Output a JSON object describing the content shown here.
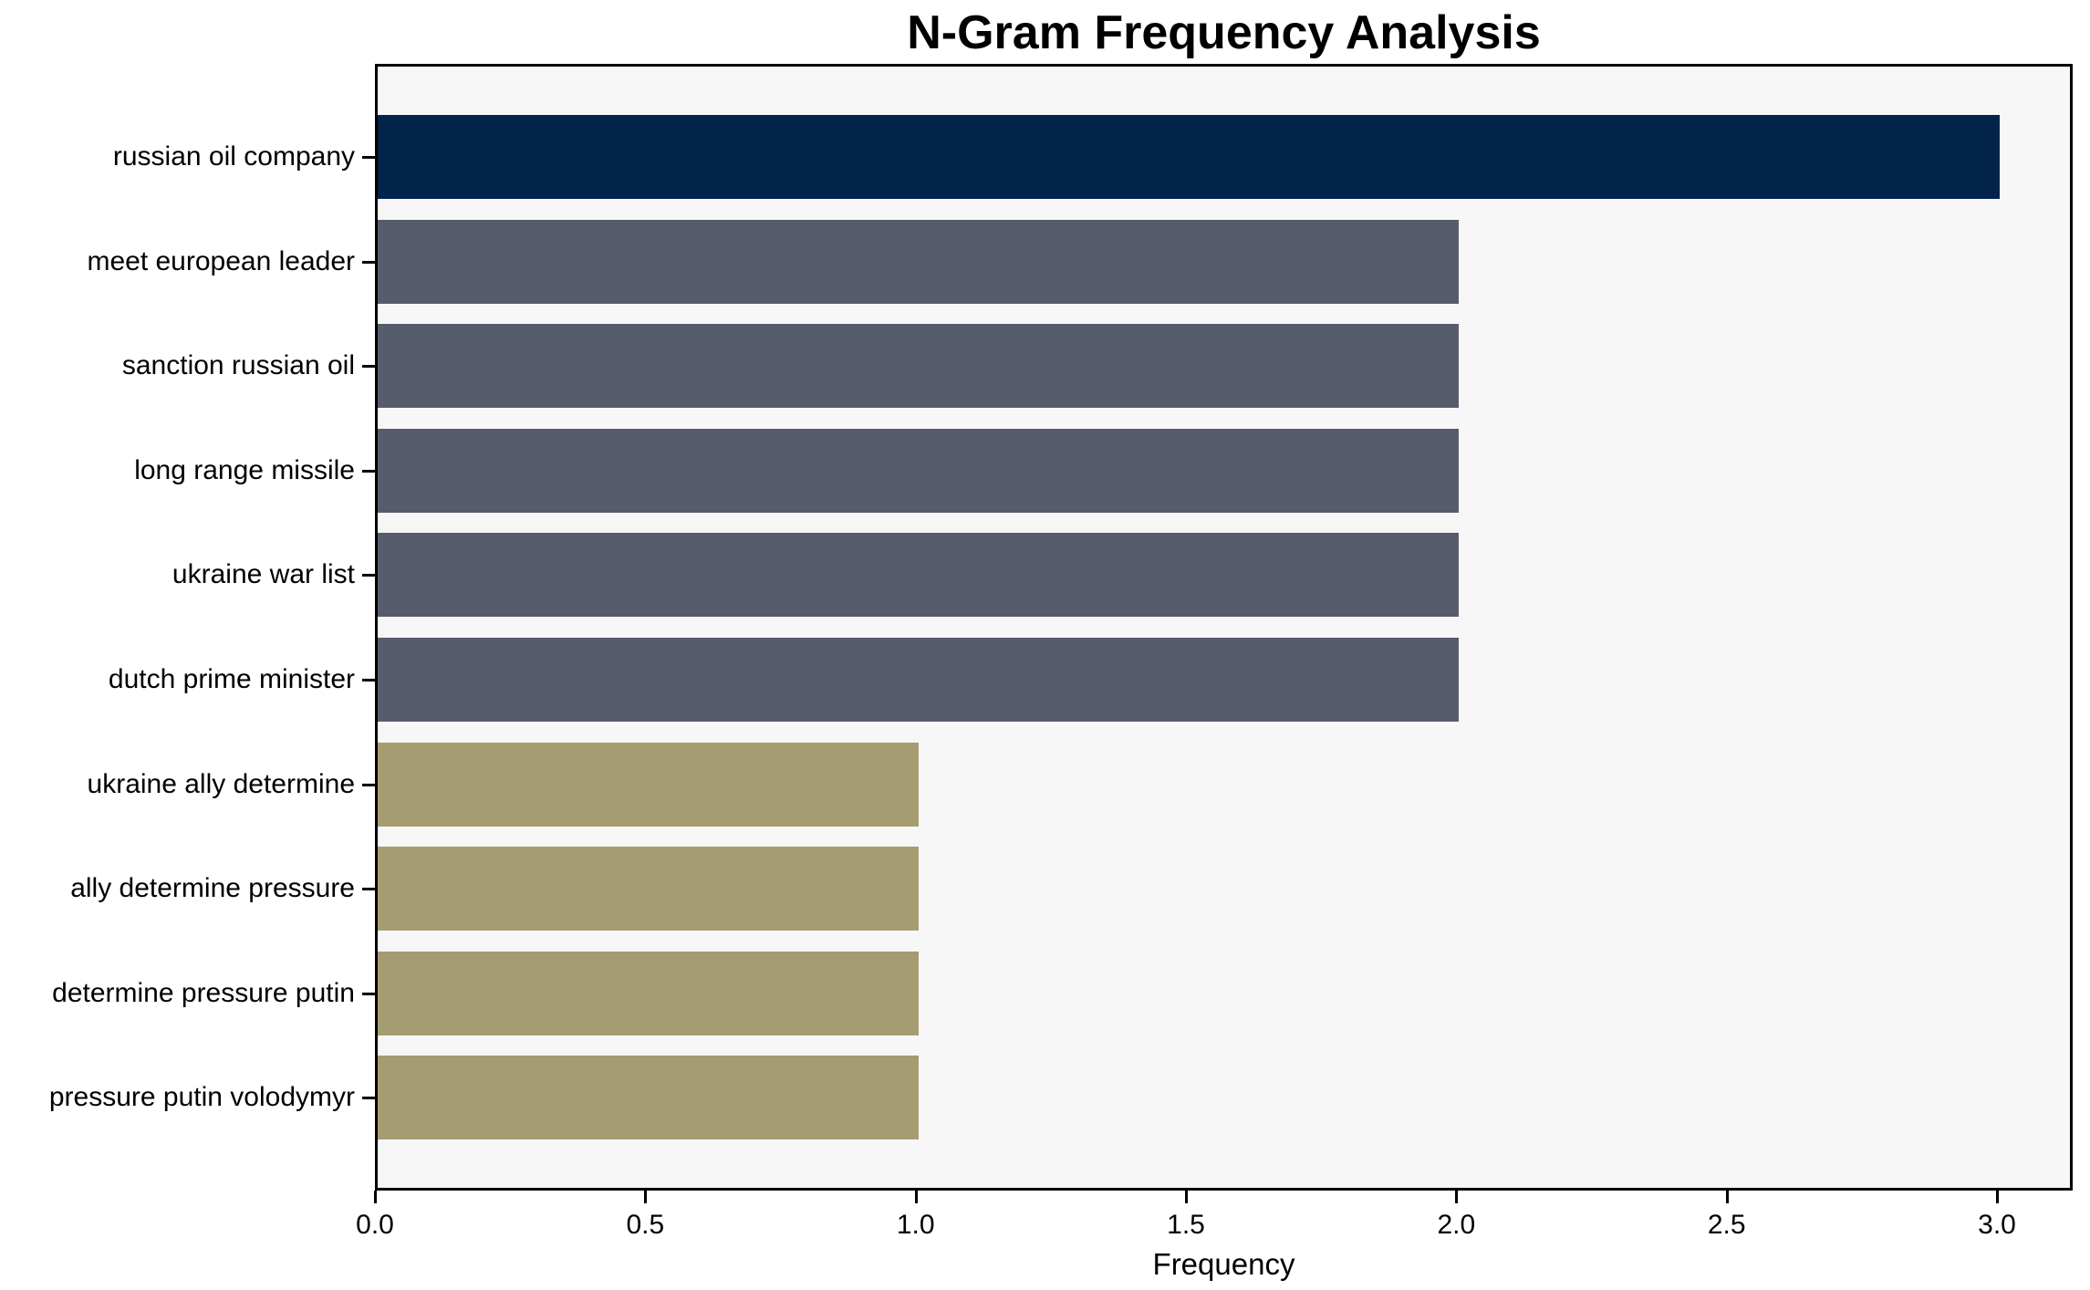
{
  "chart_data": {
    "type": "bar",
    "orientation": "horizontal",
    "title": "N-Gram Frequency Analysis",
    "xlabel": "Frequency",
    "ylabel": "",
    "categories": [
      "russian oil company",
      "meet european leader",
      "sanction russian oil",
      "long range missile",
      "ukraine war list",
      "dutch prime minister",
      "ukraine ally determine",
      "ally determine pressure",
      "determine pressure putin",
      "pressure putin volodymyr"
    ],
    "values": [
      3,
      2,
      2,
      2,
      2,
      2,
      1,
      1,
      1,
      1
    ],
    "bar_colors": [
      "#02234A",
      "#565C6B",
      "#565C6B",
      "#565C6B",
      "#565C6B",
      "#565C6B",
      "#A69C72",
      "#A69C72",
      "#A69C72",
      "#A69C72"
    ],
    "xticks": [
      0,
      0.5,
      1,
      1.5,
      2,
      2.5,
      3
    ],
    "xtick_labels": [
      "0.0",
      "0.5",
      "1.0",
      "1.5",
      "2.0",
      "2.5",
      "3.0"
    ],
    "xlim": [
      0,
      3.14
    ],
    "grid": false,
    "legend": null,
    "colors": {
      "top_bar": "#02234A",
      "mid_bars": "#565C6B",
      "low_bars": "#A69C72",
      "plot_background": "#F7F7F8",
      "page_background": "#FFFFFF",
      "axis_and_text": "#000000"
    }
  }
}
